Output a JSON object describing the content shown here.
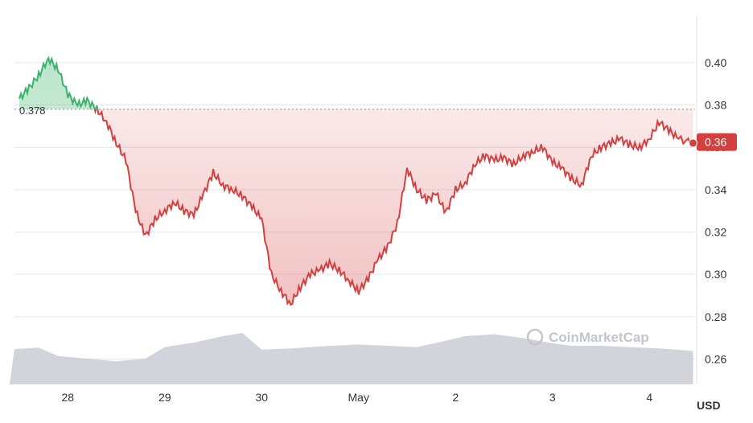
{
  "chart_data": {
    "type": "area",
    "x_ticks": [
      "28",
      "29",
      "30",
      "May",
      "2",
      "3",
      "4"
    ],
    "y_ticks": [
      "0.40",
      "0.38",
      "0.36",
      "0.34",
      "0.32",
      "0.30",
      "0.28",
      "0.26"
    ],
    "y_tick_values": [
      0.4,
      0.38,
      0.36,
      0.34,
      0.32,
      0.3,
      0.28,
      0.26
    ],
    "ylim": [
      0.248,
      0.422
    ],
    "reference_value": 0.378,
    "reference_label": "0.378",
    "current_value": 0.3625,
    "current_label": "0.36",
    "unit": "USD",
    "watermark": "CoinMarketCap",
    "colors": {
      "up": "#3bb36b",
      "down": "#d43f3f",
      "volume": "#c9cdd3",
      "grid": "#e6e6e6"
    },
    "series": [
      {
        "values_by_day": [
          [
            27.5,
            0.383
          ],
          [
            27.6,
            0.388
          ],
          [
            27.7,
            0.394
          ],
          [
            27.8,
            0.402
          ],
          [
            27.9,
            0.397
          ],
          [
            28.0,
            0.385
          ],
          [
            28.1,
            0.38
          ],
          [
            28.2,
            0.382
          ],
          [
            28.3,
            0.378
          ],
          [
            28.4,
            0.372
          ],
          [
            28.5,
            0.362
          ],
          [
            28.6,
            0.354
          ],
          [
            28.7,
            0.33
          ],
          [
            28.8,
            0.318
          ],
          [
            28.9,
            0.326
          ],
          [
            29.0,
            0.33
          ],
          [
            29.1,
            0.334
          ],
          [
            29.2,
            0.33
          ],
          [
            29.3,
            0.328
          ],
          [
            29.4,
            0.338
          ],
          [
            29.5,
            0.348
          ],
          [
            29.6,
            0.342
          ],
          [
            29.7,
            0.34
          ],
          [
            29.8,
            0.337
          ],
          [
            29.9,
            0.332
          ],
          [
            30.0,
            0.326
          ],
          [
            30.1,
            0.3
          ],
          [
            30.2,
            0.292
          ],
          [
            30.3,
            0.286
          ],
          [
            30.4,
            0.294
          ],
          [
            30.5,
            0.3
          ],
          [
            30.6,
            0.302
          ],
          [
            30.7,
            0.305
          ],
          [
            30.8,
            0.302
          ],
          [
            30.9,
            0.297
          ],
          [
            31.0,
            0.292
          ],
          [
            31.1,
            0.298
          ],
          [
            31.2,
            0.307
          ],
          [
            31.3,
            0.313
          ],
          [
            31.4,
            0.324
          ],
          [
            31.5,
            0.35
          ],
          [
            31.6,
            0.34
          ],
          [
            31.7,
            0.335
          ],
          [
            31.8,
            0.338
          ],
          [
            31.9,
            0.329
          ],
          [
            32.0,
            0.34
          ],
          [
            32.1,
            0.343
          ],
          [
            32.2,
            0.352
          ],
          [
            32.3,
            0.356
          ],
          [
            32.4,
            0.354
          ],
          [
            32.5,
            0.355
          ],
          [
            32.6,
            0.352
          ],
          [
            32.7,
            0.356
          ],
          [
            32.8,
            0.358
          ],
          [
            32.9,
            0.36
          ],
          [
            33.0,
            0.353
          ],
          [
            33.1,
            0.35
          ],
          [
            33.2,
            0.345
          ],
          [
            33.3,
            0.342
          ],
          [
            33.4,
            0.356
          ],
          [
            33.5,
            0.36
          ],
          [
            33.6,
            0.362
          ],
          [
            33.7,
            0.364
          ],
          [
            33.8,
            0.361
          ],
          [
            33.9,
            0.36
          ],
          [
            34.0,
            0.364
          ],
          [
            34.1,
            0.372
          ],
          [
            34.2,
            0.368
          ],
          [
            34.3,
            0.364
          ],
          [
            34.45,
            0.362
          ]
        ]
      }
    ],
    "volume_profile": [
      [
        27.4,
        0.55
      ],
      [
        27.7,
        0.57
      ],
      [
        27.9,
        0.44
      ],
      [
        28.2,
        0.4
      ],
      [
        28.5,
        0.36
      ],
      [
        28.8,
        0.4
      ],
      [
        29.0,
        0.58
      ],
      [
        29.3,
        0.65
      ],
      [
        29.6,
        0.75
      ],
      [
        29.8,
        0.8
      ],
      [
        30.0,
        0.54
      ],
      [
        30.3,
        0.56
      ],
      [
        30.7,
        0.6
      ],
      [
        31.0,
        0.62
      ],
      [
        31.3,
        0.6
      ],
      [
        31.6,
        0.58
      ],
      [
        31.9,
        0.68
      ],
      [
        32.1,
        0.75
      ],
      [
        32.4,
        0.78
      ],
      [
        32.7,
        0.72
      ],
      [
        33.0,
        0.64
      ],
      [
        33.2,
        0.6
      ],
      [
        33.5,
        0.6
      ],
      [
        33.8,
        0.58
      ],
      [
        34.1,
        0.56
      ],
      [
        34.45,
        0.52
      ]
    ]
  }
}
